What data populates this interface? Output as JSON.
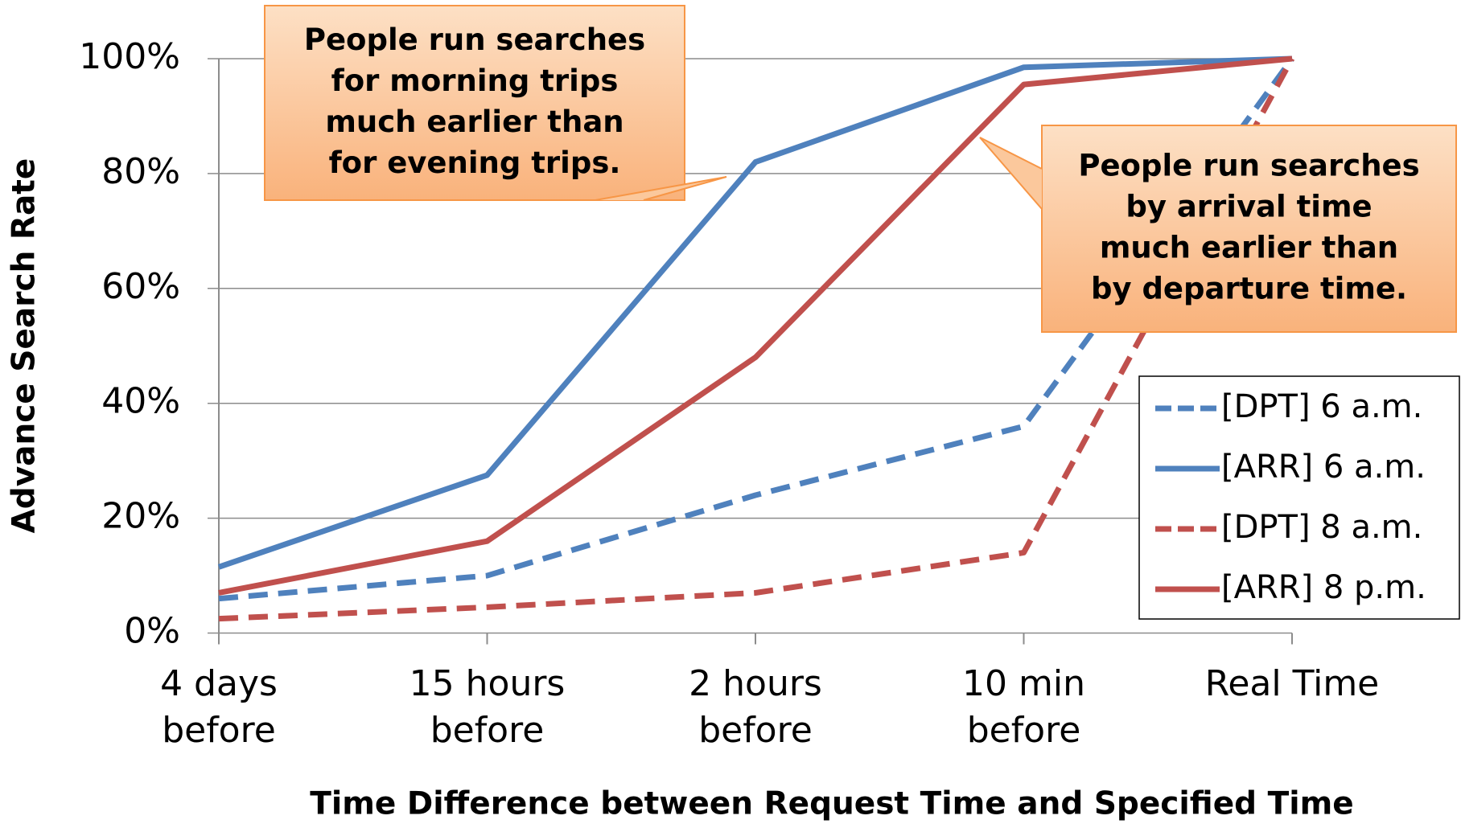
{
  "chart_data": {
    "type": "line",
    "x_label": "Time Difference between Request Time and Specified Time",
    "y_label": "Advance Search Rate",
    "categories": [
      "4 days before",
      "15 hours before",
      "2 hours before",
      "10 min before",
      "Real Time"
    ],
    "series": [
      {
        "name": "[DPT] 6 a.m.",
        "color": "#4f81bd",
        "dashed": true,
        "values": [
          6,
          10,
          24,
          36,
          100
        ]
      },
      {
        "name": "[ARR] 6 a.m.",
        "color": "#4f81bd",
        "dashed": false,
        "values": [
          11.5,
          27.5,
          82,
          98.5,
          100
        ]
      },
      {
        "name": "[DPT] 8 a.m.",
        "color": "#c0504d",
        "dashed": true,
        "values": [
          2.5,
          4.5,
          7,
          14,
          100
        ]
      },
      {
        "name": "[ARR] 8 p.m.",
        "color": "#c0504d",
        "dashed": false,
        "values": [
          7,
          16,
          48,
          95.5,
          100
        ]
      }
    ],
    "ylim": [
      0,
      100
    ],
    "yticks": [
      {
        "value": 0,
        "label": "0%"
      },
      {
        "value": 20,
        "label": "20%"
      },
      {
        "value": 40,
        "label": "40%"
      },
      {
        "value": 60,
        "label": "60%"
      },
      {
        "value": 80,
        "label": "80%"
      },
      {
        "value": 100,
        "label": "100%"
      }
    ],
    "grid": true,
    "legend": "lower right",
    "annotations": [
      {
        "text": [
          "People run searches",
          "for morning trips",
          "much earlier than",
          "for evening trips."
        ]
      },
      {
        "text": [
          "People run searches",
          "by arrival time",
          "much earlier than",
          "by departure time."
        ]
      }
    ]
  }
}
